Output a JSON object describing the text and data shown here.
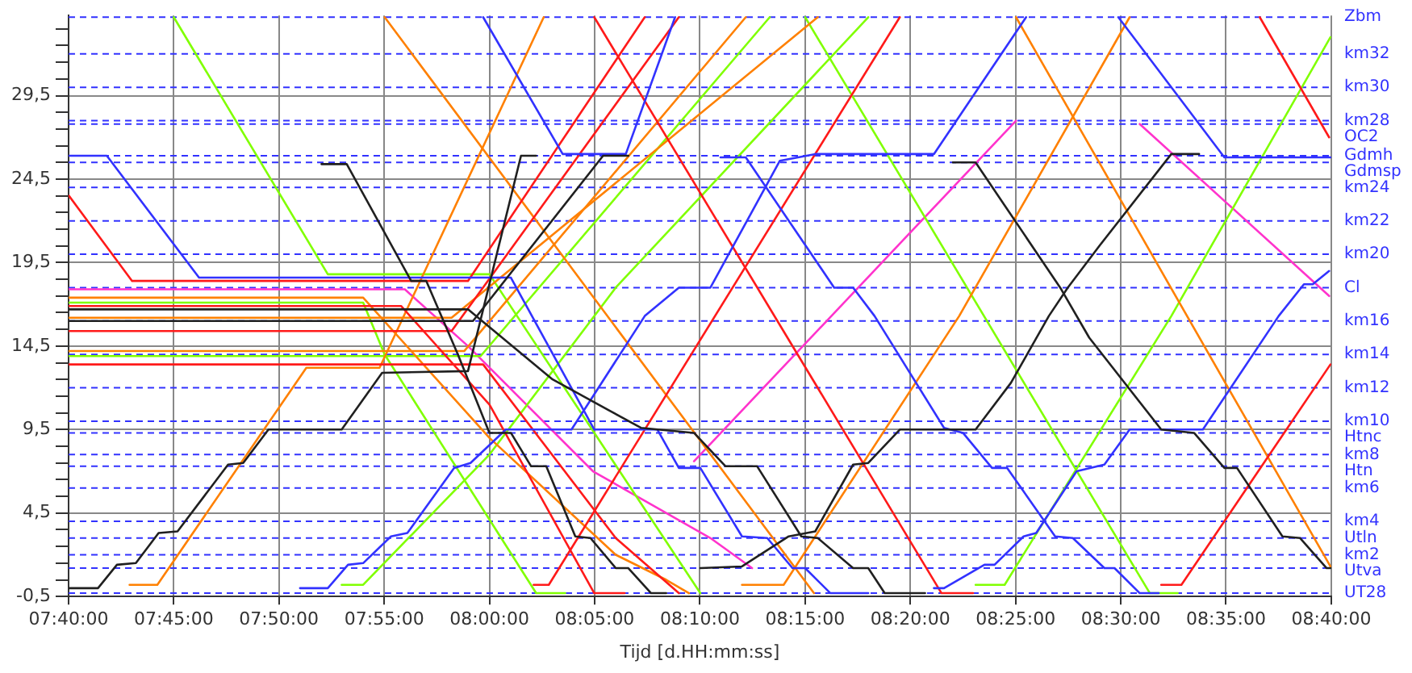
{
  "chart_data": {
    "type": "line",
    "xlabel": "Tijd [d.HH:mm:ss]",
    "legend": false,
    "grid": true,
    "marker": "none",
    "line_style": "solid",
    "xlim": [
      7.6667,
      8.6667
    ],
    "xticks": [
      {
        "value": 7.6667,
        "label": "07:40:00"
      },
      {
        "value": 7.75,
        "label": "07:45:00"
      },
      {
        "value": 7.8333,
        "label": "07:50:00"
      },
      {
        "value": 7.9167,
        "label": "07:55:00"
      },
      {
        "value": 8,
        "label": "08:00:00"
      },
      {
        "value": 8.0833,
        "label": "08:05:00"
      },
      {
        "value": 8.1667,
        "label": "08:10:00"
      },
      {
        "value": 8.25,
        "label": "08:15:00"
      },
      {
        "value": 8.3333,
        "label": "08:20:00"
      },
      {
        "value": 8.4167,
        "label": "08:25:00"
      },
      {
        "value": 8.5,
        "label": "08:30:00"
      },
      {
        "value": 8.5833,
        "label": "08:35:00"
      },
      {
        "value": 8.6667,
        "label": "08:40:00"
      }
    ],
    "ylim": [
      -0.5,
      34.3
    ],
    "yticks": [
      {
        "value": -0.5,
        "label": "-0,5"
      },
      {
        "value": 0.5,
        "label": null
      },
      {
        "value": 1.5,
        "label": null
      },
      {
        "value": 2.5,
        "label": null
      },
      {
        "value": 3.5,
        "label": null
      },
      {
        "value": 4.5,
        "label": "4,5"
      },
      {
        "value": 5.5,
        "label": null
      },
      {
        "value": 6.5,
        "label": null
      },
      {
        "value": 7.5,
        "label": null
      },
      {
        "value": 8.5,
        "label": null
      },
      {
        "value": 9.5,
        "label": "9,5"
      },
      {
        "value": 10.5,
        "label": null
      },
      {
        "value": 11.5,
        "label": null
      },
      {
        "value": 12.5,
        "label": null
      },
      {
        "value": 13.5,
        "label": null
      },
      {
        "value": 14.5,
        "label": "14,5"
      },
      {
        "value": 15.5,
        "label": null
      },
      {
        "value": 16.5,
        "label": null
      },
      {
        "value": 17.5,
        "label": null
      },
      {
        "value": 18.5,
        "label": null
      },
      {
        "value": 19.5,
        "label": "19,5"
      },
      {
        "value": 20.5,
        "label": null
      },
      {
        "value": 21.5,
        "label": null
      },
      {
        "value": 22.5,
        "label": null
      },
      {
        "value": 23.5,
        "label": null
      },
      {
        "value": 24.5,
        "label": "24,5"
      },
      {
        "value": 25.5,
        "label": null
      },
      {
        "value": 26.5,
        "label": null
      },
      {
        "value": 27.5,
        "label": null
      },
      {
        "value": 28.5,
        "label": null
      },
      {
        "value": 29.5,
        "label": "29,5"
      },
      {
        "value": 30.5,
        "label": null
      },
      {
        "value": 31.5,
        "label": null
      },
      {
        "value": 32.5,
        "label": null
      },
      {
        "value": 33.5,
        "label": null
      }
    ],
    "ref_lines": [
      {
        "axis": "y",
        "value": 34.2,
        "label": "Zbm",
        "color": "#3232ff",
        "line_style": "dashed"
      },
      {
        "axis": "y",
        "value": 32,
        "label": "km32",
        "color": "#3232ff",
        "line_style": "dashed"
      },
      {
        "axis": "y",
        "value": 30,
        "label": "km30",
        "color": "#3232ff",
        "line_style": "dashed"
      },
      {
        "axis": "y",
        "value": 28,
        "label": "km28",
        "color": "#3232ff",
        "line_style": "dashed"
      },
      {
        "axis": "y",
        "value": 27.8,
        "label": "OC2",
        "color": "#3232ff",
        "line_style": "dashed"
      },
      {
        "axis": "y",
        "value": 25.9,
        "label": "Gdmh",
        "color": "#3232ff",
        "line_style": "dashed"
      },
      {
        "axis": "y",
        "value": 25.5,
        "label": "Gdmsp",
        "color": "#3232ff",
        "line_style": "dashed"
      },
      {
        "axis": "y",
        "value": 24,
        "label": "km24",
        "color": "#3232ff",
        "line_style": "dashed"
      },
      {
        "axis": "y",
        "value": 22,
        "label": "km22",
        "color": "#3232ff",
        "line_style": "dashed"
      },
      {
        "axis": "y",
        "value": 20,
        "label": "km20",
        "color": "#3232ff",
        "line_style": "dashed"
      },
      {
        "axis": "y",
        "value": 18,
        "label": "Cl",
        "color": "#3232ff",
        "line_style": "dashed"
      },
      {
        "axis": "y",
        "value": 16,
        "label": "km16",
        "color": "#3232ff",
        "line_style": "dashed"
      },
      {
        "axis": "y",
        "value": 14,
        "label": "km14",
        "color": "#3232ff",
        "line_style": "dashed"
      },
      {
        "axis": "y",
        "value": 12,
        "label": "km12",
        "color": "#3232ff",
        "line_style": "dashed"
      },
      {
        "axis": "y",
        "value": 10,
        "label": "km10",
        "color": "#3232ff",
        "line_style": "dashed"
      },
      {
        "axis": "y",
        "value": 9.3,
        "label": "Htnc",
        "color": "#3232ff",
        "line_style": "dashed"
      },
      {
        "axis": "y",
        "value": 8,
        "label": "km8",
        "color": "#3232ff",
        "line_style": "dashed"
      },
      {
        "axis": "y",
        "value": 7.3,
        "label": "Htn",
        "color": "#3232ff",
        "line_style": "dashed"
      },
      {
        "axis": "y",
        "value": 6,
        "label": "km6",
        "color": "#3232ff",
        "line_style": "dashed"
      },
      {
        "axis": "y",
        "value": 4,
        "label": "km4",
        "color": "#3232ff",
        "line_style": "dashed"
      },
      {
        "axis": "y",
        "value": 3,
        "label": "Utln",
        "color": "#3232ff",
        "line_style": "dashed"
      },
      {
        "axis": "y",
        "value": 2,
        "label": "km2",
        "color": "#3232ff",
        "line_style": "dashed"
      },
      {
        "axis": "y",
        "value": 1.2,
        "label": "Utva",
        "color": "#3232ff",
        "line_style": "dashed"
      },
      {
        "axis": "y",
        "value": -0.3,
        "label": "UT28",
        "color": "#3232ff",
        "line_style": "dashed"
      }
    ],
    "series": [
      {
        "color": "#202020",
        "x": [
          7.667,
          7.69,
          7.705,
          7.72,
          7.738,
          7.753,
          7.793,
          7.805,
          7.825,
          7.883,
          7.915,
          7.983,
          8.025,
          8.037
        ],
        "values": [
          0,
          0,
          1.4,
          1.5,
          3.3,
          3.4,
          7.4,
          7.5,
          9.5,
          9.5,
          12.9,
          13,
          25.9,
          25.9
        ]
      },
      {
        "color": "#202020",
        "x": [
          7.867,
          7.887,
          7.938,
          7.95,
          7.975,
          8.0,
          8.017,
          8.033,
          8.045,
          8.068,
          8.08,
          8.1,
          8.11,
          8.128,
          8.14
        ],
        "values": [
          25.4,
          25.4,
          18.4,
          18.4,
          14,
          9.3,
          9.3,
          7.3,
          7.3,
          3.1,
          3,
          1.2,
          1.2,
          -0.3,
          -0.3
        ]
      },
      {
        "color": "#202020",
        "x": [
          7.667,
          7.983,
          8.05,
          8.12,
          8.162,
          8.187,
          8.212,
          8.247,
          8.26,
          8.288,
          8.3,
          8.313,
          8.345
        ],
        "values": [
          16.7,
          16.7,
          12.5,
          9.6,
          9.3,
          7.3,
          7.3,
          3.1,
          3,
          1.2,
          1.2,
          -0.3,
          -0.3
        ]
      },
      {
        "color": "#202020",
        "x": [
          8.167,
          8.2,
          8.237,
          8.258,
          8.288,
          8.3,
          8.325,
          8.385,
          8.413,
          8.443,
          8.458,
          8.483,
          8.54,
          8.562
        ],
        "values": [
          1.2,
          1.3,
          3.1,
          3.4,
          7.4,
          7.5,
          9.5,
          9.5,
          12.3,
          16.3,
          18,
          20.5,
          26,
          26
        ]
      },
      {
        "color": "#202020",
        "x": [
          8.367,
          8.385,
          8.452,
          8.475,
          8.532,
          8.558,
          8.582,
          8.592,
          8.628,
          8.642,
          8.663,
          8.666
        ],
        "values": [
          25.5,
          25.5,
          18,
          15,
          9.5,
          9.3,
          7.2,
          7.2,
          3.1,
          3,
          1.2,
          1.2
        ]
      },
      {
        "color": "#202020",
        "x": [
          7.667,
          7.987,
          8.09,
          8.11
        ],
        "values": [
          16,
          16,
          25.9,
          25.9
        ]
      },
      {
        "color": "#3232ff",
        "x": [
          7.667,
          7.697,
          7.77,
          8.017,
          8.083,
          8.133,
          8.15,
          8.167,
          8.2,
          8.22,
          8.24,
          8.25,
          8.27,
          8.3
        ],
        "values": [
          25.9,
          25.9,
          18.6,
          18.6,
          9.5,
          9.5,
          7.2,
          7.2,
          3.1,
          3,
          1.2,
          1.2,
          -0.3,
          -0.3
        ]
      },
      {
        "color": "#3232ff",
        "x": [
          7.995,
          8.058,
          8.108,
          8.147
        ],
        "values": [
          34.2,
          26,
          26,
          34.2
        ]
      },
      {
        "color": "#3232ff",
        "x": [
          7.85,
          7.872,
          7.888,
          7.9,
          7.922,
          7.935,
          7.972,
          7.985,
          8.013,
          8.065,
          8.123,
          8.15,
          8.175,
          8.23,
          8.258,
          8.352,
          8.425
        ],
        "values": [
          0,
          0,
          1.4,
          1.5,
          3.1,
          3.3,
          7.2,
          7.5,
          9.5,
          9.5,
          16.3,
          18,
          18,
          25.6,
          26,
          26,
          34.2
        ]
      },
      {
        "color": "#3232ff",
        "x": [
          8.183,
          8.203,
          8.273,
          8.288,
          8.305,
          8.36,
          8.375,
          8.398,
          8.41,
          8.448,
          8.462,
          8.487,
          8.495,
          8.515,
          8.53
        ],
        "values": [
          25.8,
          25.8,
          18,
          18,
          16.3,
          9.6,
          9.3,
          7.2,
          7.2,
          3.1,
          3,
          1.2,
          1.2,
          -0.3,
          -0.3
        ]
      },
      {
        "color": "#3232ff",
        "x": [
          8.352,
          8.36,
          8.392,
          8.4,
          8.423,
          8.433,
          8.465,
          8.487,
          8.507,
          8.565,
          8.625,
          8.645,
          8.652,
          8.665
        ],
        "values": [
          0,
          0,
          1.4,
          1.4,
          3.1,
          3.3,
          7,
          7.4,
          9.5,
          9.5,
          16.3,
          18.2,
          18.2,
          19
        ]
      },
      {
        "color": "#3232ff",
        "x": [
          8.498,
          8.582,
          8.666
        ],
        "values": [
          34.2,
          25.8,
          25.8
        ]
      },
      {
        "color": "#ff1a1a",
        "x": [
          7.667,
          7.717,
          7.983,
          8.123
        ],
        "values": [
          23.5,
          18.4,
          18.4,
          34.2
        ]
      },
      {
        "color": "#ff1a1a",
        "x": [
          8.083,
          8.358,
          8.383
        ],
        "values": [
          34.2,
          -0.3,
          -0.3
        ]
      },
      {
        "color": "#ff1a1a",
        "x": [
          8.035,
          8.047,
          8.325
        ],
        "values": [
          0.2,
          0.2,
          34.2
        ]
      },
      {
        "color": "#ff1a1a",
        "x": [
          8.532,
          8.548,
          8.666
        ],
        "values": [
          0.2,
          0.2,
          13.4
        ]
      },
      {
        "color": "#ff1a1a",
        "x": [
          8.61,
          8.665
        ],
        "values": [
          34.2,
          27
        ]
      },
      {
        "color": "#ff1a1a",
        "x": [
          7.667,
          7.93,
          8.0,
          8.083,
          8.107
        ],
        "values": [
          16.9,
          16.9,
          11,
          -0.3,
          -0.3
        ]
      },
      {
        "color": "#ff1a1a",
        "x": [
          7.667,
          7.97,
          8.15
        ],
        "values": [
          15.4,
          15.4,
          34.2
        ]
      },
      {
        "color": "#ff1a1a",
        "x": [
          7.667,
          7.995,
          8.1,
          8.15
        ],
        "values": [
          13.4,
          13.4,
          3,
          -0.3
        ]
      },
      {
        "color": "#ff8000",
        "x": [
          7.715,
          7.737,
          7.855,
          7.913,
          8.043
        ],
        "values": [
          0.2,
          0.2,
          13.2,
          13.2,
          34.2
        ]
      },
      {
        "color": "#ff8000",
        "x": [
          7.917,
          8.257
        ],
        "values": [
          34.2,
          -0.3
        ]
      },
      {
        "color": "#ff8000",
        "x": [
          7.667,
          7.9,
          8.0,
          8.1,
          8.14,
          8.158
        ],
        "values": [
          17.4,
          17.4,
          9,
          2,
          0.5,
          -0.3
        ]
      },
      {
        "color": "#ff8000",
        "x": [
          7.667,
          7.98,
          8.203
        ],
        "values": [
          14.2,
          14.2,
          34.2
        ]
      },
      {
        "color": "#ff8000",
        "x": [
          7.667,
          7.97,
          8.26
        ],
        "values": [
          16.2,
          16.2,
          34.2
        ]
      },
      {
        "color": "#ff8000",
        "x": [
          8.2,
          8.233,
          8.372,
          8.507
        ],
        "values": [
          0.2,
          0.2,
          16.3,
          34.2
        ]
      },
      {
        "color": "#ff8000",
        "x": [
          8.417,
          8.666
        ],
        "values": [
          34.2,
          1.3
        ]
      },
      {
        "color": "#80ff00",
        "x": [
          7.75,
          7.872,
          8.0,
          8.167
        ],
        "values": [
          34.2,
          18.8,
          18.8,
          -0.3
        ]
      },
      {
        "color": "#80ff00",
        "x": [
          7.667,
          7.9,
          7.917,
          8.037,
          8.06
        ],
        "values": [
          17.1,
          17.1,
          14,
          -0.3,
          -0.3
        ]
      },
      {
        "color": "#80ff00",
        "x": [
          7.667,
          7.993,
          8.222
        ],
        "values": [
          13.9,
          13.9,
          34.2
        ]
      },
      {
        "color": "#80ff00",
        "x": [
          7.883,
          7.9,
          8.0,
          8.1,
          8.3
        ],
        "values": [
          0.2,
          0.2,
          8,
          18,
          34.2
        ]
      },
      {
        "color": "#80ff00",
        "x": [
          8.25,
          8.523,
          8.545
        ],
        "values": [
          34.2,
          -0.3,
          -0.3
        ]
      },
      {
        "color": "#80ff00",
        "x": [
          8.385,
          8.408,
          8.54,
          8.666
        ],
        "values": [
          0.2,
          0.2,
          16.3,
          33
        ]
      },
      {
        "color": "#ff33cc",
        "x": [
          7.667,
          7.933,
          7.983,
          8.082,
          8.175,
          8.208
        ],
        "values": [
          17.9,
          17.9,
          14.5,
          7,
          3,
          1.2
        ]
      },
      {
        "color": "#ff33cc",
        "x": [
          8.162,
          8.417
        ],
        "values": [
          7.6,
          28
        ]
      },
      {
        "color": "#ff33cc",
        "x": [
          8.515,
          8.665
        ],
        "values": [
          27.8,
          17.5
        ]
      }
    ]
  }
}
